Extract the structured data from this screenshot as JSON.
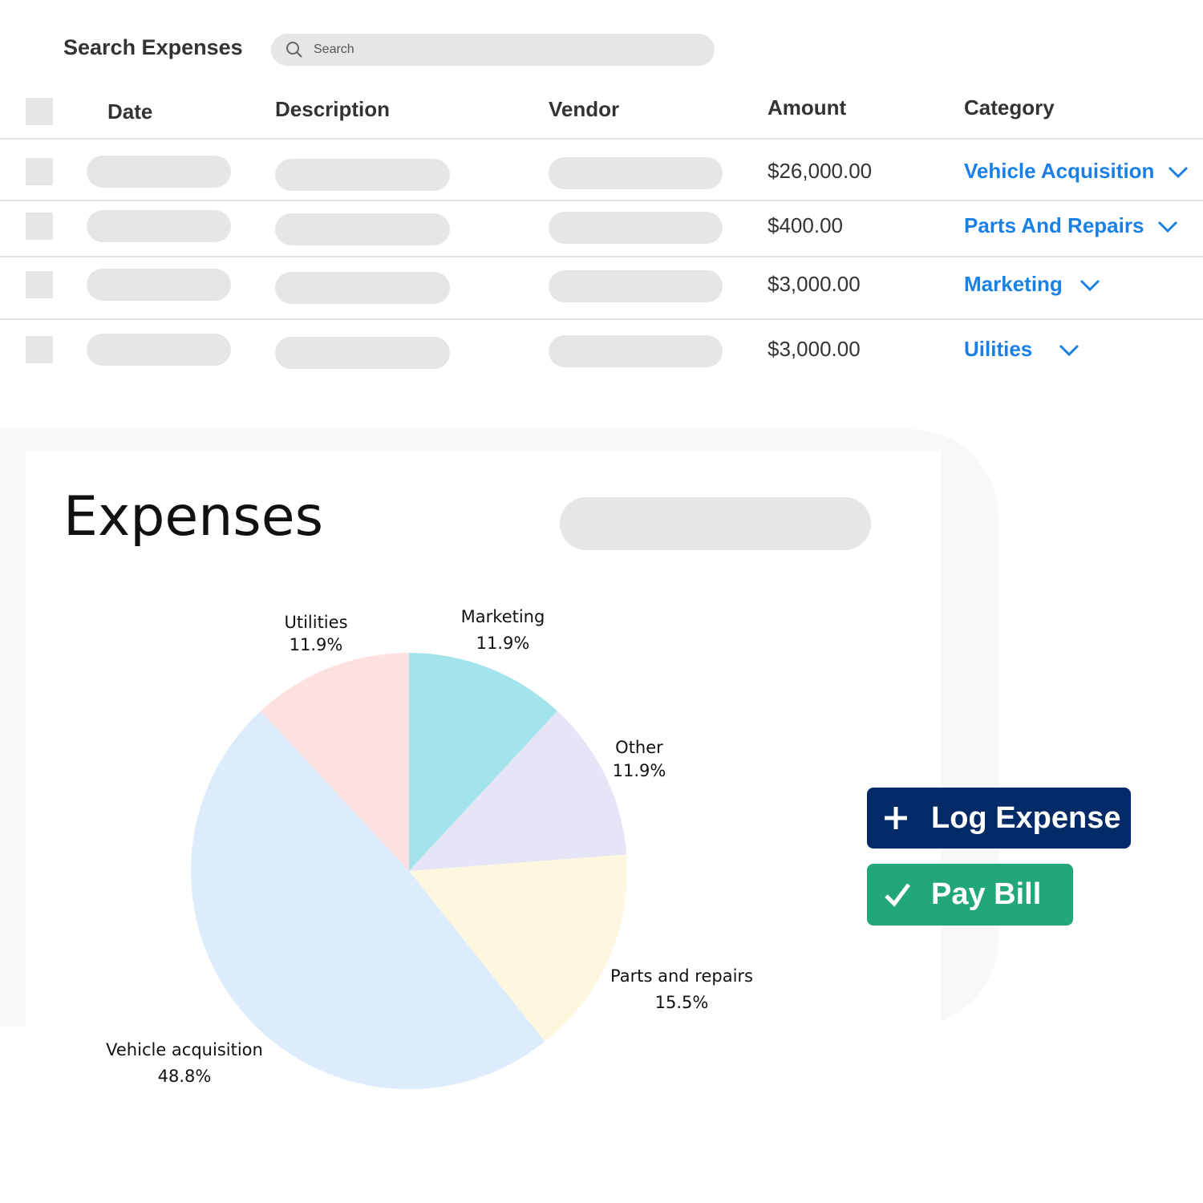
{
  "header": {
    "title": "Search Expenses",
    "search_placeholder": "Search"
  },
  "table": {
    "columns": [
      "Date",
      "Description",
      "Vendor",
      "Amount",
      "Category"
    ],
    "rows": [
      {
        "amount": "$26,000.00",
        "category": "Vehicle Acquisition"
      },
      {
        "amount": "$400.00",
        "category": "Parts And Repairs"
      },
      {
        "amount": "$3,000.00",
        "category": "Marketing"
      },
      {
        "amount": "$3,000.00",
        "category": "Uilities"
      }
    ]
  },
  "panel": {
    "title": "Expenses"
  },
  "chart_data": {
    "type": "pie",
    "categories": [
      "Marketing",
      "Other",
      "Parts and repairs",
      "Vehicle acquisition",
      "Utilities"
    ],
    "values": [
      11.9,
      11.9,
      15.5,
      48.8,
      11.9
    ],
    "value_labels": [
      "11.9%",
      "11.9%",
      "15.5%",
      "48.8%",
      "11.9%"
    ],
    "colors": [
      "#a3e4ec",
      "#e5e5f7",
      "#fdf7df",
      "#dcecfc",
      "#fde0e0"
    ]
  },
  "buttons": {
    "log_expense": "Log Expense",
    "pay_bill": "Pay Bill"
  }
}
